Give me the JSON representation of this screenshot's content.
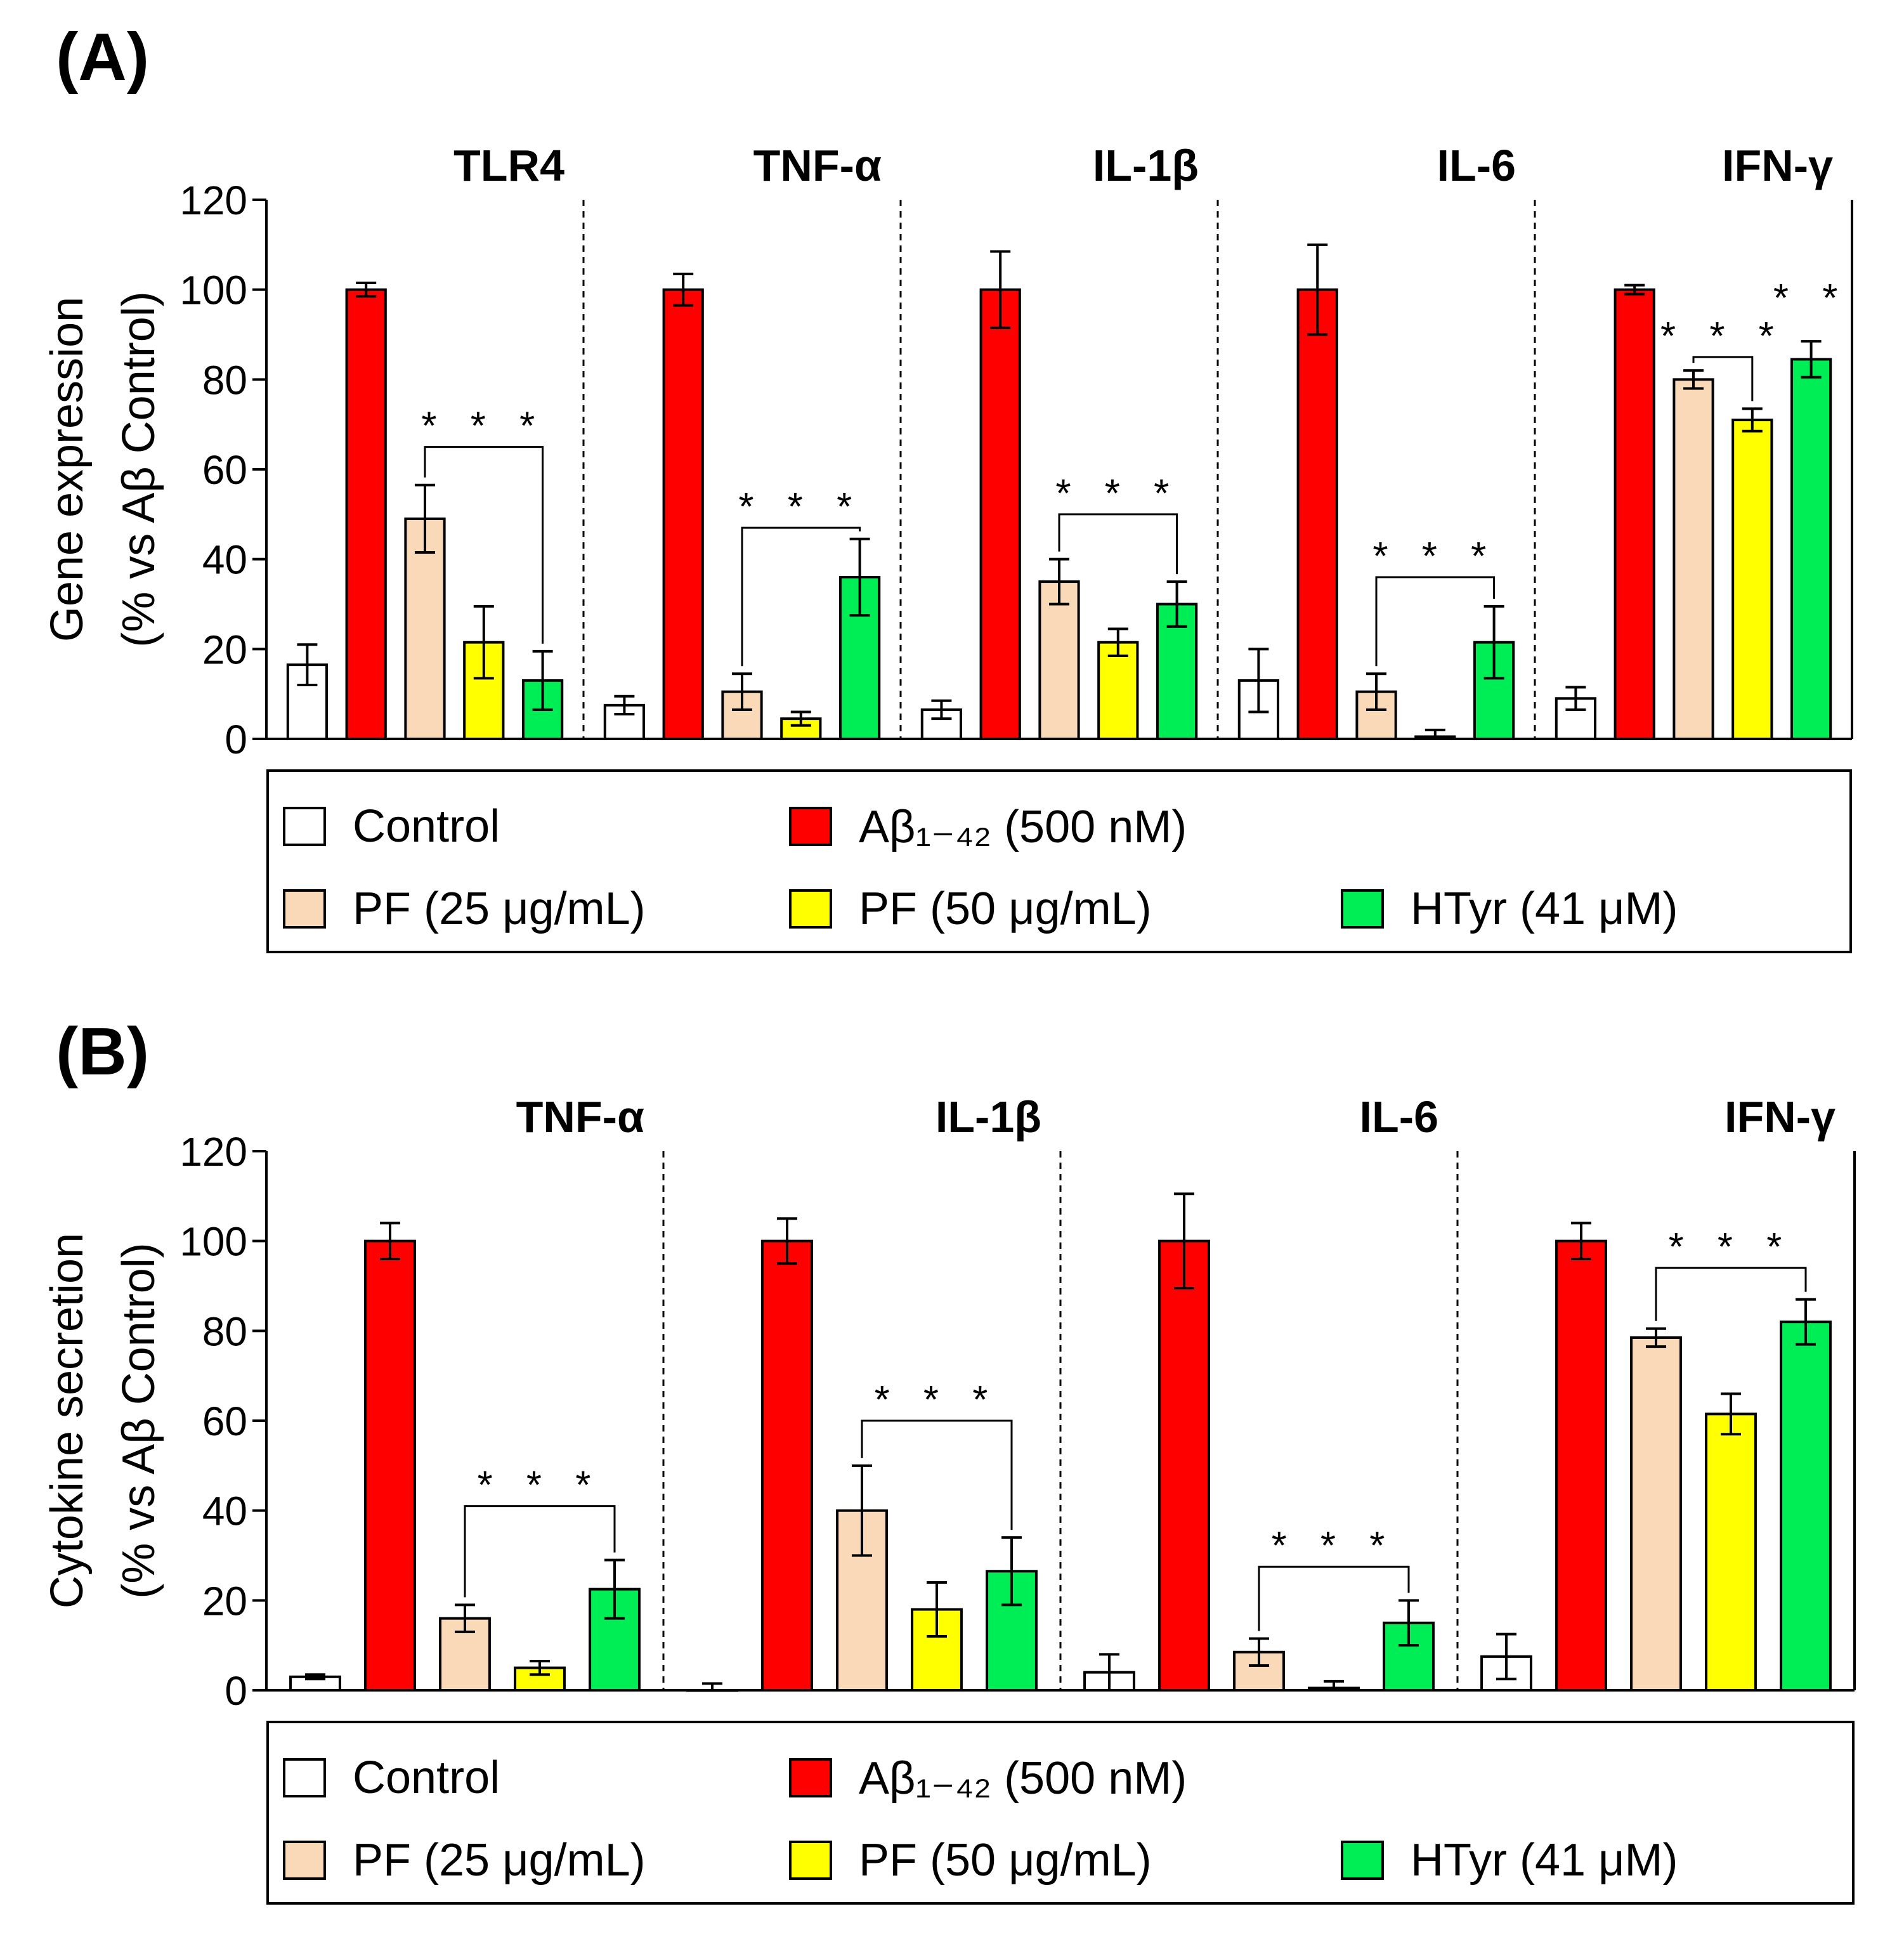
{
  "panels": [
    {
      "letter": "(A)",
      "ylabel_line1": "Gene expression",
      "ylabel_line2": "(% vs Aβ Control)",
      "legend": [
        {
          "label": "Control",
          "color": "#ffffff"
        },
        {
          "label": "Aβ₁₋₄₂ (500 nM)",
          "color": "#ff0000"
        },
        {
          "label": "PF (25 μg/mL)",
          "color": "#fad9b9"
        },
        {
          "label": "PF (50 μg/mL)",
          "color": "#ffff00"
        },
        {
          "label": "HTyr (41 μM)",
          "color": "#00ee55"
        }
      ]
    },
    {
      "letter": "(B)",
      "ylabel_line1": "Cytokine secretion",
      "ylabel_line2": "(% vs Aβ Control)",
      "legend": [
        {
          "label": "Control",
          "color": "#ffffff"
        },
        {
          "label": "Aβ₁₋₄₂ (500 nM)",
          "color": "#ff0000"
        },
        {
          "label": "PF (25 μg/mL)",
          "color": "#fad9b9"
        },
        {
          "label": "PF (50 μg/mL)",
          "color": "#ffff00"
        },
        {
          "label": "HTyr (41 μM)",
          "color": "#00ee55"
        }
      ]
    }
  ],
  "chart_data": [
    {
      "type": "bar",
      "title": "(A)",
      "ylabel": "Gene expression (% vs Aβ Control)",
      "ylim": [
        0,
        120
      ],
      "yticks": [
        0,
        20,
        40,
        60,
        80,
        100,
        120
      ],
      "series_names": [
        "Control",
        "Aβ₁₋₄₂ (500 nM)",
        "PF (25 μg/mL)",
        "PF (50 μg/mL)",
        "HTyr (41 μM)"
      ],
      "series_colors": [
        "#ffffff",
        "#ff0000",
        "#fad9b9",
        "#ffff00",
        "#00ee55"
      ],
      "groups": [
        {
          "name": "TLR4",
          "values": [
            16.5,
            100,
            49,
            21.5,
            13
          ],
          "errors": [
            4.5,
            1.5,
            7.5,
            8,
            6.5
          ],
          "brackets": [
            {
              "from": 2,
              "to": 4,
              "y": 65,
              "label": "* * *"
            }
          ],
          "stars": []
        },
        {
          "name": "TNF-α",
          "values": [
            7.5,
            100,
            10.5,
            4.5,
            36
          ],
          "errors": [
            2,
            3.5,
            4,
            1.5,
            8.5
          ],
          "brackets": [
            {
              "from": 2,
              "to": 4,
              "y": 47,
              "label": "* * *"
            }
          ],
          "stars": []
        },
        {
          "name": "IL-1β",
          "values": [
            6.5,
            100,
            35,
            21.5,
            30
          ],
          "errors": [
            2,
            8.5,
            5,
            3,
            5
          ],
          "brackets": [
            {
              "from": 2,
              "to": 4,
              "y": 50,
              "label": "* * *"
            }
          ],
          "stars": []
        },
        {
          "name": "IL-6",
          "values": [
            13,
            100,
            10.5,
            0.5,
            21.5
          ],
          "errors": [
            7,
            10,
            4,
            1.5,
            8
          ],
          "brackets": [
            {
              "from": 2,
              "to": 4,
              "y": 36,
              "label": "* * *"
            }
          ],
          "stars": []
        },
        {
          "name": "IFN-γ",
          "values": [
            9,
            100,
            80,
            71,
            84.5
          ],
          "errors": [
            2.5,
            1,
            2,
            2.5,
            4
          ],
          "brackets": [
            {
              "from": 2,
              "to": 3,
              "y": 85,
              "label": "* * *"
            }
          ],
          "stars": [
            {
              "bar": 4,
              "y": 98,
              "label": "* *"
            }
          ]
        }
      ]
    },
    {
      "type": "bar",
      "title": "(B)",
      "ylabel": "Cytokine secretion (% vs Aβ Control)",
      "ylim": [
        0,
        120
      ],
      "yticks": [
        0,
        20,
        40,
        60,
        80,
        100,
        120
      ],
      "series_names": [
        "Control",
        "Aβ₁₋₄₂ (500 nM)",
        "PF (25 μg/mL)",
        "PF (50 μg/mL)",
        "HTyr (41 μM)"
      ],
      "series_colors": [
        "#ffffff",
        "#ff0000",
        "#fad9b9",
        "#ffff00",
        "#00ee55"
      ],
      "groups": [
        {
          "name": "TNF-α",
          "values": [
            3,
            100,
            16,
            5,
            22.5
          ],
          "errors": [
            0.5,
            4,
            3,
            1.5,
            6.5
          ],
          "brackets": [
            {
              "from": 2,
              "to": 4,
              "y": 41,
              "label": "* * *"
            }
          ],
          "stars": []
        },
        {
          "name": "IL-1β",
          "values": [
            0,
            100,
            40,
            18,
            26.5
          ],
          "errors": [
            1.5,
            5,
            10,
            6,
            7.5
          ],
          "brackets": [
            {
              "from": 2,
              "to": 4,
              "y": 60,
              "label": "* * *"
            }
          ],
          "stars": []
        },
        {
          "name": "IL-6",
          "values": [
            4,
            100,
            8.5,
            0.5,
            15
          ],
          "errors": [
            4,
            10.5,
            3,
            1.5,
            5
          ],
          "brackets": [
            {
              "from": 2,
              "to": 4,
              "y": 27.5,
              "label": "* * *"
            }
          ],
          "stars": []
        },
        {
          "name": "IFN-γ",
          "values": [
            7.5,
            100,
            78.5,
            61.5,
            82
          ],
          "errors": [
            5,
            4,
            2,
            4.5,
            5
          ],
          "brackets": [
            {
              "from": 2,
              "to": 4,
              "y": 94,
              "label": "* * *"
            }
          ],
          "stars": []
        }
      ]
    }
  ]
}
